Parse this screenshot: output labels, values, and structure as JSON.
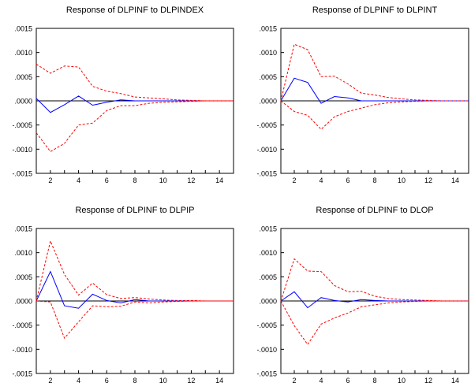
{
  "chart_data": [
    {
      "type": "line",
      "title": "Response of DLPINF to DLPINDEX",
      "xlim": [
        1,
        15
      ],
      "ylim": [
        -0.0015,
        0.0015
      ],
      "yticks": [
        ".0015",
        ".0010",
        ".0005",
        ".0000",
        "-.0005",
        "-.0010",
        "-.0015"
      ],
      "xticks": [
        "2",
        "4",
        "6",
        "8",
        "10",
        "12",
        "14"
      ],
      "x": [
        1,
        2,
        3,
        4,
        5,
        6,
        7,
        8,
        9,
        10,
        11,
        12,
        13,
        14,
        15
      ],
      "series": [
        {
          "role": "response",
          "color": "#0000ff",
          "style": "solid",
          "values": [
            5e-05,
            -0.00024,
            -8e-05,
            0.0001,
            -9e-05,
            -3e-05,
            2e-05,
            0.0,
            0.0,
            0.0,
            0.0,
            0.0,
            0.0,
            0.0,
            0.0
          ]
        },
        {
          "role": "upper_band",
          "color": "#ff0000",
          "style": "dashed",
          "values": [
            0.00076,
            0.00057,
            0.00072,
            0.0007,
            0.0003,
            0.0002,
            0.00015,
            8e-05,
            6e-05,
            4e-05,
            2e-05,
            1e-05,
            0.0,
            0.0,
            0.0
          ]
        },
        {
          "role": "lower_band",
          "color": "#ff0000",
          "style": "dashed",
          "values": [
            -0.00066,
            -0.00105,
            -0.00088,
            -0.0005,
            -0.00046,
            -0.0002,
            -0.0001,
            -0.0001,
            -5e-05,
            -3e-05,
            -2e-05,
            -1e-05,
            0.0,
            0.0,
            0.0
          ]
        }
      ]
    },
    {
      "type": "line",
      "title": "Response of DLPINF to DLPINT",
      "xlim": [
        1,
        15
      ],
      "ylim": [
        -0.0015,
        0.0015
      ],
      "yticks": [
        ".0015",
        ".0010",
        ".0005",
        ".0000",
        "-.0005",
        "-.0010",
        "-.0015"
      ],
      "xticks": [
        "2",
        "4",
        "6",
        "8",
        "10",
        "12",
        "14"
      ],
      "x": [
        1,
        2,
        3,
        4,
        5,
        6,
        7,
        8,
        9,
        10,
        11,
        12,
        13,
        14,
        15
      ],
      "series": [
        {
          "role": "response",
          "color": "#0000ff",
          "style": "solid",
          "values": [
            0.0,
            0.00047,
            0.00038,
            -5e-05,
            9e-05,
            6e-05,
            0.0,
            0.0,
            0.0,
            0.0,
            0.0,
            0.0,
            0.0,
            0.0,
            0.0
          ]
        },
        {
          "role": "upper_band",
          "color": "#ff0000",
          "style": "dashed",
          "values": [
            0.0,
            0.00117,
            0.00106,
            0.0005,
            0.00051,
            0.00035,
            0.00016,
            0.00012,
            7e-05,
            4e-05,
            2e-05,
            1e-05,
            0.0,
            0.0,
            0.0
          ]
        },
        {
          "role": "lower_band",
          "color": "#ff0000",
          "style": "dashed",
          "values": [
            0.0,
            -0.00022,
            -0.0003,
            -0.00059,
            -0.00033,
            -0.00022,
            -0.00015,
            -8e-05,
            -4e-05,
            -2e-05,
            -1e-05,
            0.0,
            0.0,
            0.0,
            0.0
          ]
        }
      ]
    },
    {
      "type": "line",
      "title": "Response of DLPINF to DLPIP",
      "xlim": [
        1,
        15
      ],
      "ylim": [
        -0.0015,
        0.0015
      ],
      "yticks": [
        ".0015",
        ".0010",
        ".0005",
        ".0000",
        "-.0005",
        "-.0010",
        "-.0015"
      ],
      "xticks": [
        "2",
        "4",
        "6",
        "8",
        "10",
        "12",
        "14"
      ],
      "x": [
        1,
        2,
        3,
        4,
        5,
        6,
        7,
        8,
        9,
        10,
        11,
        12,
        13,
        14,
        15
      ],
      "series": [
        {
          "role": "response",
          "color": "#0000ff",
          "style": "solid",
          "values": [
            0.0,
            0.00061,
            -0.0001,
            -0.00015,
            0.00014,
            1e-05,
            -4e-05,
            3e-05,
            0.0,
            0.0,
            0.0,
            0.0,
            0.0,
            0.0,
            0.0
          ]
        },
        {
          "role": "upper_band",
          "color": "#ff0000",
          "style": "dashed",
          "values": [
            0.0,
            0.00124,
            0.00055,
            0.00012,
            0.00037,
            0.00013,
            5e-05,
            7e-05,
            4e-05,
            2e-05,
            1e-05,
            1e-05,
            0.0,
            0.0,
            0.0
          ]
        },
        {
          "role": "lower_band",
          "color": "#ff0000",
          "style": "dashed",
          "values": [
            0.0,
            -2e-05,
            -0.00077,
            -0.00043,
            -0.0001,
            -0.00012,
            -0.00011,
            -2e-05,
            -4e-05,
            -2e-05,
            -1e-05,
            0.0,
            0.0,
            0.0,
            0.0
          ]
        }
      ]
    },
    {
      "type": "line",
      "title": "Response of DLPINF to DLOP",
      "xlim": [
        1,
        15
      ],
      "ylim": [
        -0.0015,
        0.0015
      ],
      "yticks": [
        ".0015",
        ".0010",
        ".0005",
        ".0000",
        "-.0005",
        "-.0010",
        "-.0015"
      ],
      "xticks": [
        "2",
        "4",
        "6",
        "8",
        "10",
        "12",
        "14"
      ],
      "x": [
        1,
        2,
        3,
        4,
        5,
        6,
        7,
        8,
        9,
        10,
        11,
        12,
        13,
        14,
        15
      ],
      "series": [
        {
          "role": "response",
          "color": "#0000ff",
          "style": "solid",
          "values": [
            0.0,
            0.00019,
            -0.00014,
            7e-05,
            1e-05,
            -2e-05,
            3e-05,
            1e-05,
            0.0,
            0.0,
            0.0,
            0.0,
            0.0,
            0.0,
            0.0
          ]
        },
        {
          "role": "upper_band",
          "color": "#ff0000",
          "style": "dashed",
          "values": [
            0.0,
            0.00087,
            0.00062,
            0.00061,
            0.00032,
            0.00019,
            0.0002,
            0.0001,
            5e-05,
            3e-05,
            2e-05,
            1e-05,
            0.0,
            0.0,
            0.0
          ]
        },
        {
          "role": "lower_band",
          "color": "#ff0000",
          "style": "dashed",
          "values": [
            0.0,
            -0.00051,
            -0.0009,
            -0.00048,
            -0.00035,
            -0.00025,
            -0.00012,
            -8e-05,
            -4e-05,
            -2e-05,
            -1e-05,
            0.0,
            0.0,
            0.0,
            0.0
          ]
        }
      ]
    }
  ]
}
